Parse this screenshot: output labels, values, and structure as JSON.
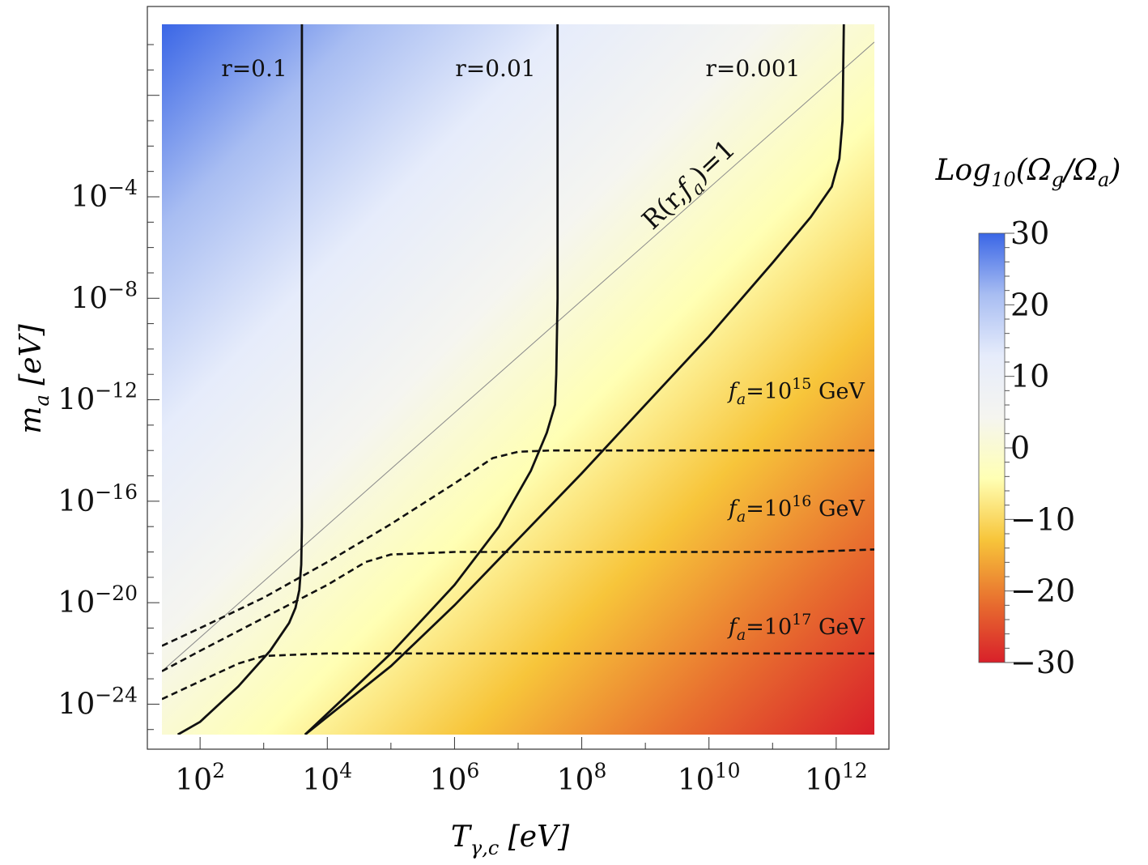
{
  "chart_data": {
    "type": "heatmap",
    "xlabel": "T",
    "xlabel_sub": "γ,c",
    "xlabel_unit": "[eV]",
    "ylabel": "m",
    "ylabel_sub": "a",
    "ylabel_unit": "[eV]",
    "x_scale": "log10",
    "y_scale": "log10",
    "xlim_log10": [
      1.4,
      12.6
    ],
    "ylim_log10": [
      -25.2,
      2.8
    ],
    "x_ticks": [
      {
        "exp": 2,
        "base": "10",
        "sup": "2"
      },
      {
        "exp": 4,
        "base": "10",
        "sup": "4"
      },
      {
        "exp": 6,
        "base": "10",
        "sup": "6"
      },
      {
        "exp": 8,
        "base": "10",
        "sup": "8"
      },
      {
        "exp": 10,
        "base": "10",
        "sup": "10"
      },
      {
        "exp": 12,
        "base": "10",
        "sup": "12"
      }
    ],
    "y_ticks": [
      {
        "exp": -4,
        "base": "10",
        "sup": "−4"
      },
      {
        "exp": -8,
        "base": "10",
        "sup": "−8"
      },
      {
        "exp": -12,
        "base": "10",
        "sup": "−12"
      },
      {
        "exp": -16,
        "base": "10",
        "sup": "−16"
      },
      {
        "exp": -20,
        "base": "10",
        "sup": "−20"
      },
      {
        "exp": -24,
        "base": "10",
        "sup": "−24"
      }
    ],
    "colorbar": {
      "title_main": "Log",
      "title_sub": "10",
      "title_rest": "(Ω",
      "title_sub2": "g",
      "title_mid": "/Ω",
      "title_sub3": "a",
      "title_end": ")",
      "min": -30,
      "max": 30,
      "ticks": [
        {
          "value": 30,
          "label": "30"
        },
        {
          "value": 20,
          "label": "20"
        },
        {
          "value": 10,
          "label": "10"
        },
        {
          "value": 0,
          "label": "0"
        },
        {
          "value": -10,
          "label": "−10"
        },
        {
          "value": -20,
          "label": "−20"
        },
        {
          "value": -30,
          "label": "−30"
        }
      ],
      "colors": [
        "#d8202a",
        "#e8702f",
        "#f7c53a",
        "#ffffb4",
        "#f5f5f0",
        "#e6ecfb",
        "#a8bdf2",
        "#3a66e6"
      ]
    },
    "solid_curves": [
      {
        "name": "r=0.1",
        "label": "r=0.1",
        "points": [
          [
            1.65,
            -25.2
          ],
          [
            2.0,
            -24.7
          ],
          [
            2.6,
            -23.3
          ],
          [
            3.1,
            -21.9
          ],
          [
            3.4,
            -20.8
          ],
          [
            3.5,
            -20.2
          ],
          [
            3.56,
            -19.5
          ],
          [
            3.59,
            -18.5
          ],
          [
            3.6,
            -17.0
          ],
          [
            3.6,
            -14.0
          ],
          [
            3.6,
            -8.0
          ],
          [
            3.6,
            -2.0
          ],
          [
            3.6,
            2.8
          ]
        ]
      },
      {
        "name": "r=0.01",
        "label": "r=0.01",
        "points": [
          [
            3.65,
            -25.2
          ],
          [
            4.2,
            -23.9
          ],
          [
            5.0,
            -22.0
          ],
          [
            6.0,
            -19.3
          ],
          [
            6.7,
            -17.0
          ],
          [
            7.2,
            -14.8
          ],
          [
            7.45,
            -13.3
          ],
          [
            7.58,
            -12.2
          ],
          [
            7.6,
            -11.0
          ],
          [
            7.62,
            -8.0
          ],
          [
            7.62,
            -3.0
          ],
          [
            7.62,
            2.8
          ]
        ]
      },
      {
        "name": "r=0.001",
        "label": "r=0.001",
        "points": [
          [
            3.65,
            -25.2
          ],
          [
            5.0,
            -22.5
          ],
          [
            6.0,
            -20.1
          ],
          [
            7.0,
            -17.5
          ],
          [
            8.0,
            -14.9
          ],
          [
            9.0,
            -12.2
          ],
          [
            10.0,
            -9.5
          ],
          [
            11.0,
            -6.6
          ],
          [
            11.6,
            -4.8
          ],
          [
            11.93,
            -3.6
          ],
          [
            12.05,
            -2.5
          ],
          [
            12.1,
            -1.0
          ],
          [
            12.12,
            2.8
          ]
        ]
      }
    ],
    "r_line": {
      "label_prefix": "R(r,",
      "label_f": "f",
      "label_sub": "a",
      "label_suffix": ")=1",
      "points": [
        [
          1.4,
          -22.7
        ],
        [
          12.6,
          2.1
        ]
      ]
    },
    "dashed_curves": [
      {
        "name": "fa=10^15",
        "label_f": "f",
        "label_sub": "a",
        "label_eq": "=10",
        "label_sup": "15",
        "label_unit": " GeV",
        "points": [
          [
            1.4,
            -21.7
          ],
          [
            2.0,
            -21.0
          ],
          [
            3.0,
            -19.8
          ],
          [
            4.0,
            -18.4
          ],
          [
            5.0,
            -16.9
          ],
          [
            6.0,
            -15.3
          ],
          [
            6.6,
            -14.3
          ],
          [
            7.0,
            -14.05
          ],
          [
            7.5,
            -14.0
          ],
          [
            9.0,
            -14.0
          ],
          [
            12.6,
            -14.0
          ]
        ]
      },
      {
        "name": "fa=10^16",
        "label_f": "f",
        "label_sub": "a",
        "label_eq": "=10",
        "label_sup": "16",
        "label_unit": " GeV",
        "points": [
          [
            1.4,
            -22.7
          ],
          [
            2.0,
            -21.9
          ],
          [
            3.0,
            -20.6
          ],
          [
            4.0,
            -19.3
          ],
          [
            4.6,
            -18.4
          ],
          [
            5.0,
            -18.1
          ],
          [
            6.0,
            -18.0
          ],
          [
            9.0,
            -18.0
          ],
          [
            11.5,
            -18.0
          ],
          [
            12.6,
            -17.9
          ]
        ]
      },
      {
        "name": "fa=10^17",
        "label_f": "f",
        "label_sub": "a",
        "label_eq": "=10",
        "label_sup": "17",
        "label_unit": " GeV",
        "points": [
          [
            1.4,
            -23.8
          ],
          [
            2.0,
            -23.1
          ],
          [
            2.6,
            -22.4
          ],
          [
            3.0,
            -22.1
          ],
          [
            4.0,
            -22.0
          ],
          [
            8.0,
            -22.0
          ],
          [
            12.6,
            -22.0
          ]
        ]
      }
    ]
  }
}
